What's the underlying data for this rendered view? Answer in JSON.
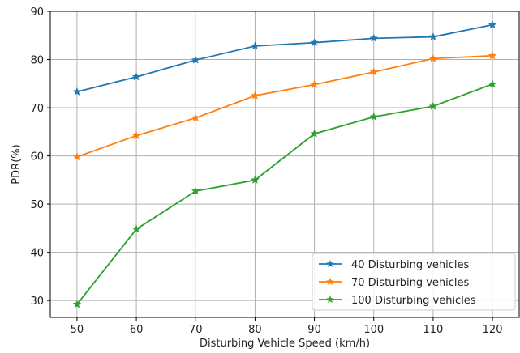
{
  "chart_data": {
    "type": "line",
    "title": "",
    "xlabel": "Disturbing Vehicle Speed (km/h)",
    "ylabel": "PDR(%)",
    "x": [
      50,
      60,
      70,
      80,
      90,
      100,
      110,
      120
    ],
    "xticks": [
      "50",
      "60",
      "70",
      "80",
      "90",
      "100",
      "110",
      "120"
    ],
    "yticks": [
      "30",
      "40",
      "50",
      "60",
      "70",
      "80",
      "90"
    ],
    "xlim": [
      45.5,
      124.5
    ],
    "ylim": [
      26.5,
      90
    ],
    "grid": true,
    "legend_position": "bottom-right",
    "marker": "star",
    "series": [
      {
        "name": "40 Disturbing vehicles",
        "color": "#1f77b4",
        "values": [
          73.3,
          76.4,
          79.9,
          82.8,
          83.5,
          84.4,
          84.7,
          87.2
        ]
      },
      {
        "name": "70 Disturbing vehicles",
        "color": "#ff7f0e",
        "values": [
          59.8,
          64.2,
          67.9,
          72.5,
          74.8,
          77.4,
          80.2,
          80.8
        ]
      },
      {
        "name": "100 Disturbing vehicles",
        "color": "#2ca02c",
        "values": [
          29.2,
          44.8,
          52.7,
          55.0,
          64.6,
          68.1,
          70.3,
          74.9
        ]
      }
    ]
  }
}
